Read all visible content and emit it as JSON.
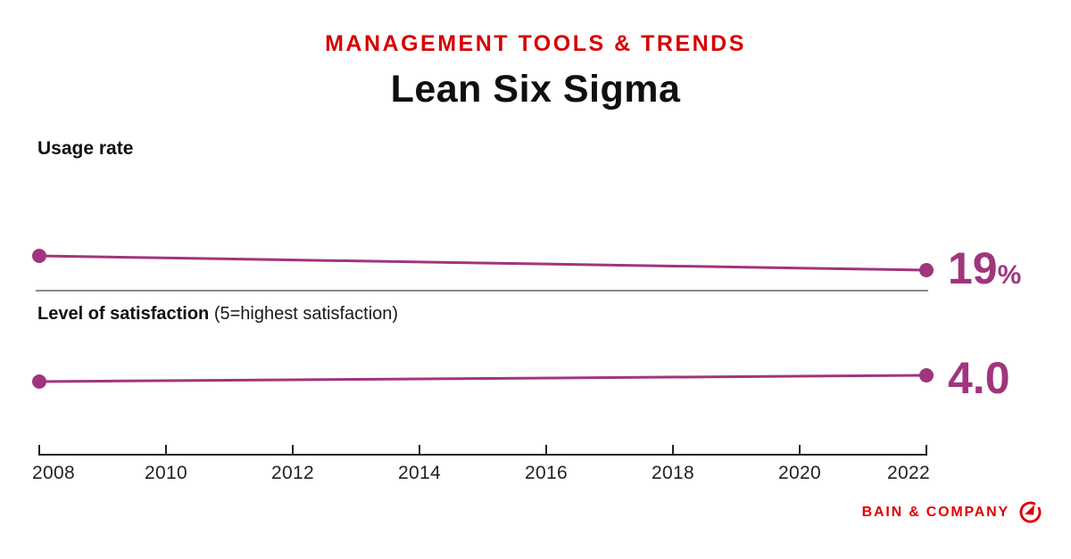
{
  "header": {
    "eyebrow": "MANAGEMENT TOOLS & TRENDS",
    "title": "Lean Six Sigma"
  },
  "usage_panel": {
    "label": "Usage rate",
    "end_value": "19",
    "end_unit": "%"
  },
  "satisfaction_panel": {
    "label_bold": "Level of satisfaction",
    "label_note": "(5=highest satisfaction)",
    "end_value": "4.0"
  },
  "axis": {
    "years": [
      "2008",
      "2010",
      "2012",
      "2014",
      "2016",
      "2018",
      "2020",
      "2022"
    ]
  },
  "footer": {
    "brand": "BAIN & COMPANY",
    "logo_icon": "bain-compass-icon"
  },
  "colors": {
    "accent_red": "#d60000",
    "footer_red": "#e00000",
    "berry": "#a0357d",
    "divider_gray": "#8a8a8a",
    "axis_black": "#222222"
  },
  "chart_data": [
    {
      "type": "line",
      "title": "Usage rate",
      "x": [
        2008,
        2022
      ],
      "values": [
        21,
        19
      ],
      "value_suffix": "%",
      "end_label": "19%",
      "xlim": [
        2008,
        2022
      ],
      "x_ticks": [
        2008,
        2010,
        2012,
        2014,
        2016,
        2018,
        2020,
        2022
      ],
      "grid": false,
      "legend_position": "none",
      "series_color": "#a0357d"
    },
    {
      "type": "line",
      "title": "Level of satisfaction",
      "subtitle": "(5=highest satisfaction)",
      "x": [
        2008,
        2022
      ],
      "values": [
        3.9,
        4.0
      ],
      "end_label": "4.0",
      "xlim": [
        2008,
        2022
      ],
      "ylim": [
        1,
        5
      ],
      "x_ticks": [
        2008,
        2010,
        2012,
        2014,
        2016,
        2018,
        2020,
        2022
      ],
      "grid": false,
      "legend_position": "none",
      "series_color": "#a0357d"
    }
  ]
}
